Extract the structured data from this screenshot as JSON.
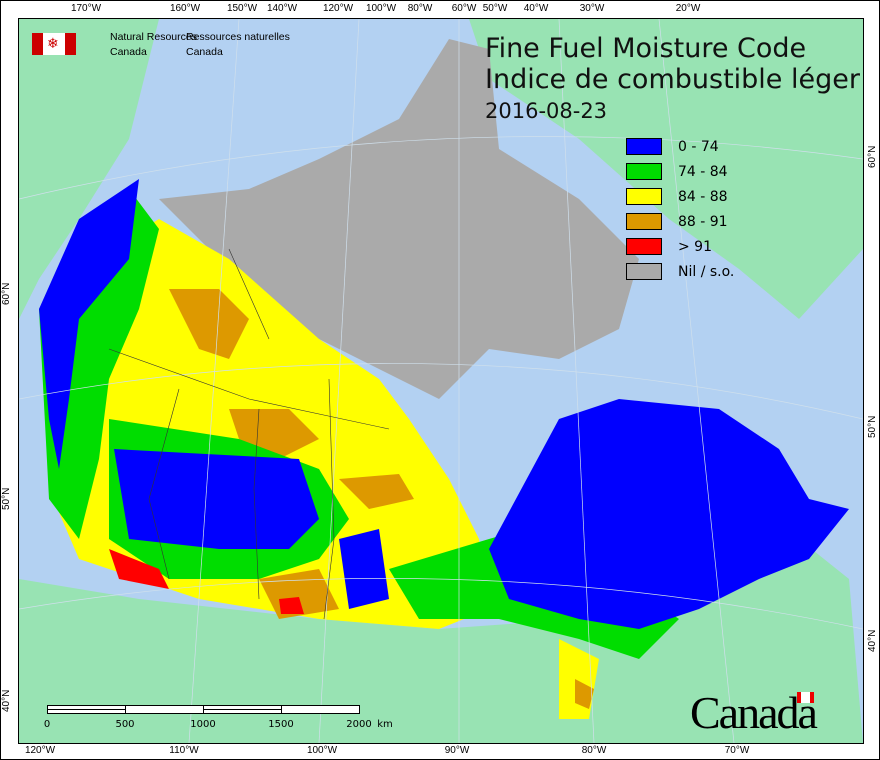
{
  "header": {
    "org_en_line1": "Natural Resources",
    "org_en_line2": "Canada",
    "org_fr_line1": "Ressources naturelles",
    "org_fr_line2": "Canada",
    "title_en": "Fine Fuel Moisture Code",
    "title_fr": "Indice de combustible léger",
    "date": "2016-08-23"
  },
  "legend": [
    {
      "label": "0 - 74",
      "color": "#0000ff"
    },
    {
      "label": "74 - 84",
      "color": "#00dd00"
    },
    {
      "label": "84 - 88",
      "color": "#ffff00"
    },
    {
      "label": "88 - 91",
      "color": "#dd9900"
    },
    {
      "label": "> 91",
      "color": "#ff0000"
    },
    {
      "label": "Nil / s.o.",
      "color": "#aaaaaa"
    }
  ],
  "axes": {
    "top": [
      "170°W",
      "160°W",
      "150°W",
      "140°W",
      "120°W",
      "100°W",
      "80°W",
      "60°W",
      "50°W",
      "40°W",
      "30°W",
      "20°W"
    ],
    "bottom": [
      "120°W",
      "110°W",
      "100°W",
      "90°W",
      "80°W",
      "70°W"
    ],
    "left": [
      "60°N",
      "50°N",
      "40°N"
    ],
    "right": [
      "60°N",
      "50°N",
      "40°N"
    ]
  },
  "scale": {
    "labels": [
      "0",
      "500",
      "1000",
      "1500",
      "2000"
    ],
    "unit": "km"
  },
  "wordmark": "Canada",
  "colors": {
    "ocean": "#b3d1f2",
    "land": "#98e3b3"
  }
}
